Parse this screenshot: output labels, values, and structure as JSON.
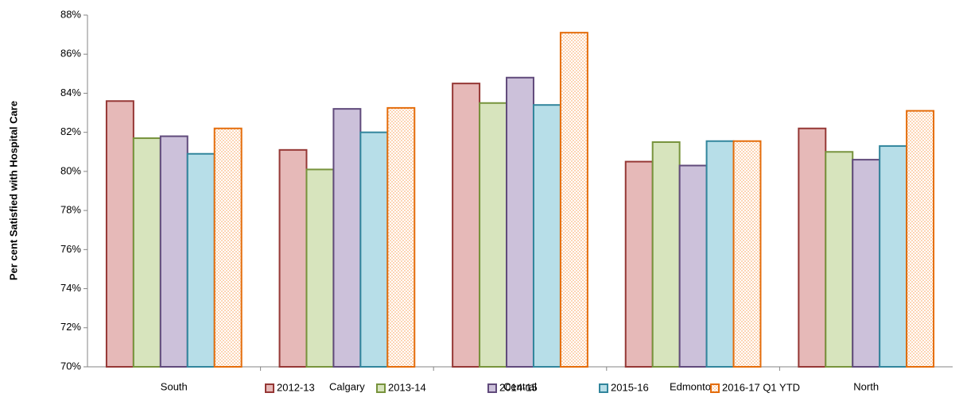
{
  "chart_data": {
    "type": "bar",
    "y_label": "Per cent Satisfied with Hospital Care",
    "categories": [
      "South",
      "Calgary",
      "Central",
      "Edmonton",
      "North"
    ],
    "series": [
      {
        "name": "2012-13",
        "color": "#953735",
        "fill": "#e6b9b8",
        "values": [
          83.6,
          81.1,
          84.5,
          80.5,
          82.2
        ]
      },
      {
        "name": "2013-14",
        "color": "#77933c",
        "fill": "#d7e4bd",
        "values": [
          81.7,
          80.1,
          83.5,
          81.5,
          81.0
        ]
      },
      {
        "name": "2014-15",
        "color": "#604a7b",
        "fill": "#ccc1da",
        "values": [
          81.8,
          83.2,
          84.8,
          80.3,
          80.6
        ]
      },
      {
        "name": "2015-16",
        "color": "#31859c",
        "fill": "#b7dee8",
        "values": [
          80.9,
          82.0,
          83.4,
          81.55,
          81.3
        ]
      },
      {
        "name": "2016-17 Q1 YTD",
        "color": "#e46c0a",
        "fill": "#fcd5b5",
        "hatch": true,
        "values": [
          82.2,
          83.25,
          87.1,
          81.55,
          83.1
        ]
      }
    ],
    "ylim": [
      70,
      88
    ],
    "yticks": [
      {
        "value": 70,
        "label": "70%"
      },
      {
        "value": 72,
        "label": "72%"
      },
      {
        "value": 74,
        "label": "74%"
      },
      {
        "value": 76,
        "label": "76%"
      },
      {
        "value": 78,
        "label": "78%"
      },
      {
        "value": 80,
        "label": "80%"
      },
      {
        "value": 82,
        "label": "82%"
      },
      {
        "value": 84,
        "label": "84%"
      },
      {
        "value": 86,
        "label": "86%"
      },
      {
        "value": 88,
        "label": "88%"
      }
    ],
    "grid": false,
    "legend": "bottom"
  }
}
